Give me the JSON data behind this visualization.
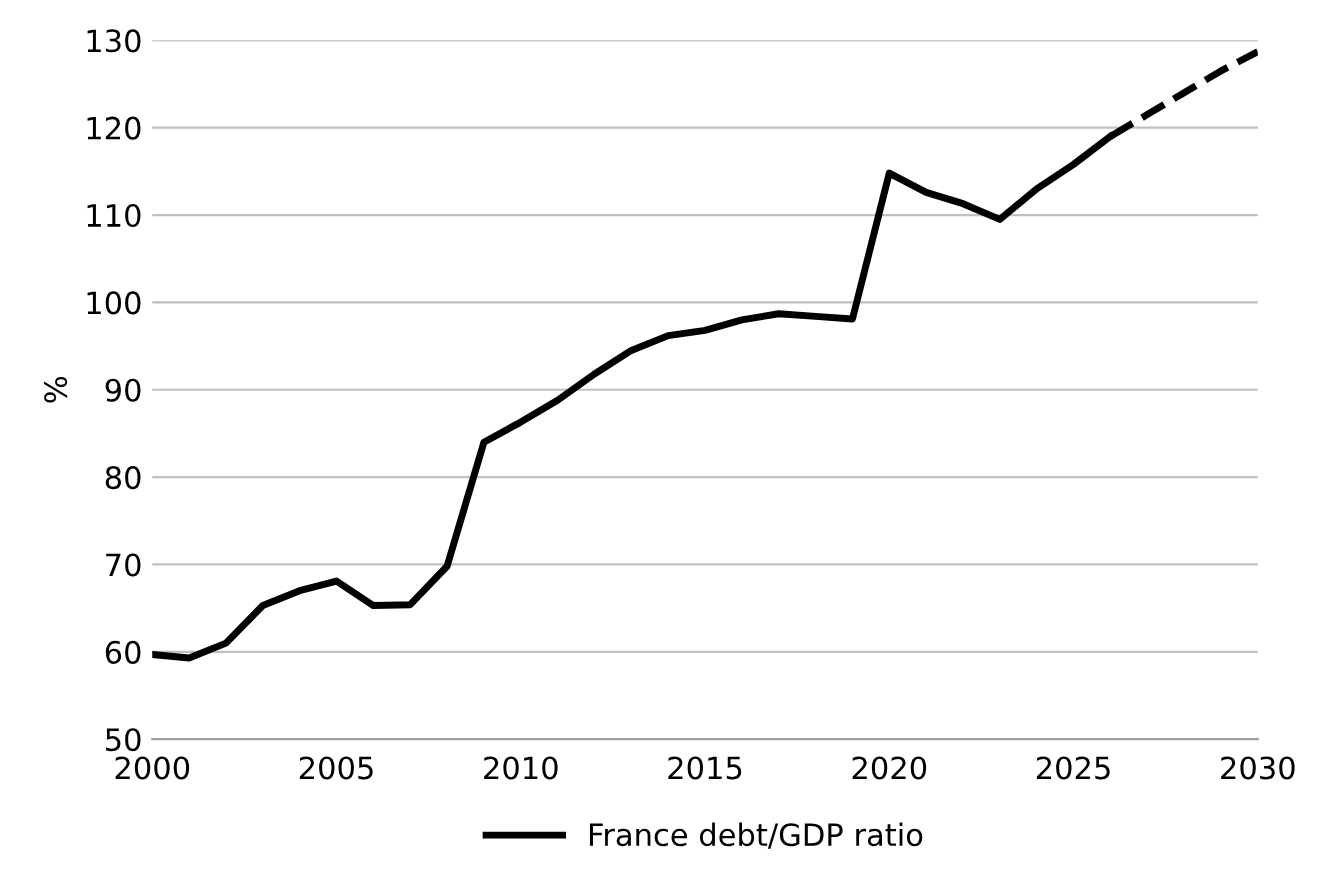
{
  "chart_data": {
    "type": "line",
    "ylabel": "%",
    "xlim": [
      2000,
      2030
    ],
    "xticks": [
      2000,
      2005,
      2010,
      2015,
      2020,
      2025,
      2030
    ],
    "ylim": [
      50,
      130
    ],
    "yticks": [
      50,
      60,
      70,
      80,
      90,
      100,
      110,
      120,
      130
    ],
    "grid": "y",
    "legend": "bottom",
    "series": [
      {
        "name": "France debt/GDP ratio",
        "color": "#000000",
        "line_style": "solid",
        "x": [
          2000,
          2001,
          2002,
          2003,
          2004,
          2005,
          2006,
          2007,
          2008,
          2009,
          2010,
          2011,
          2012,
          2013,
          2014,
          2015,
          2016,
          2017,
          2018,
          2019,
          2020,
          2021,
          2022,
          2023,
          2024,
          2025,
          2026
        ],
        "values": [
          59.7,
          59.3,
          61,
          65.3,
          67,
          68.1,
          65.3,
          65.4,
          69.8,
          84,
          86.3,
          88.8,
          91.8,
          94.5,
          96.2,
          96.8,
          98,
          98.7,
          98.4,
          98.1,
          114.8,
          112.6,
          111.3,
          109.5,
          113,
          115.8,
          119
        ]
      },
      {
        "color": "#000000",
        "line_style": "dashed",
        "x": [
          2026,
          2027,
          2028,
          2029,
          2030
        ],
        "values": [
          119,
          121.5,
          124,
          126.5,
          128.7
        ]
      }
    ]
  }
}
